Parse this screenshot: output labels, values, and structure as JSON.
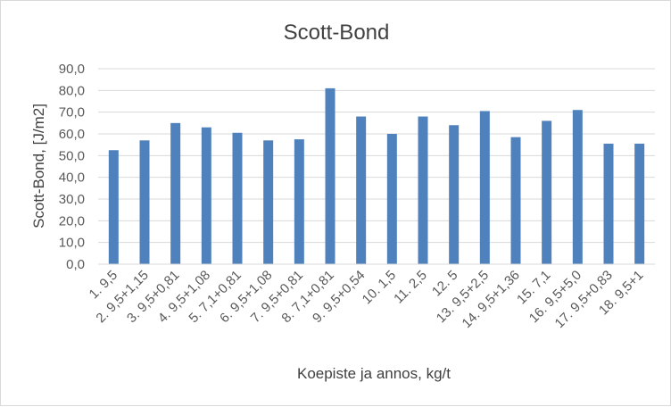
{
  "chart_data": {
    "type": "bar",
    "title": "Scott-Bond",
    "xlabel": "Koepiste ja annos, kg/t",
    "ylabel": "Scott-Bond, [J/m2]",
    "ylim": [
      0,
      90
    ],
    "yticks": [
      "0,0",
      "10,0",
      "20,0",
      "30,0",
      "40,0",
      "50,0",
      "60,0",
      "70,0",
      "80,0",
      "90,0"
    ],
    "grid": true,
    "legend": "none",
    "color": "#4f81bd",
    "categories": [
      "1.  9,5",
      "2.  9,5+1,15",
      "3.  9,5+0,81",
      "4.  9,5+1,08",
      "5.  7,1+0,81",
      "6.  9,5+1,08",
      "7.  9,5+0,81",
      "8.  7,1+0,81",
      "9.  9,5+0,54",
      "10.  1,5",
      "11.  2,5",
      "12.  5",
      "13.  9,5+2,5",
      "14.  9,5+1,36",
      "15.  7,1",
      "16.  9,5+5,0",
      "17.  9,5+0,83",
      "18.  9,5+1"
    ],
    "values": [
      52.5,
      57,
      65,
      63,
      60.5,
      57,
      57.5,
      81,
      68,
      60,
      68,
      64,
      70.5,
      58.5,
      66,
      71,
      55.5,
      55.5
    ]
  }
}
